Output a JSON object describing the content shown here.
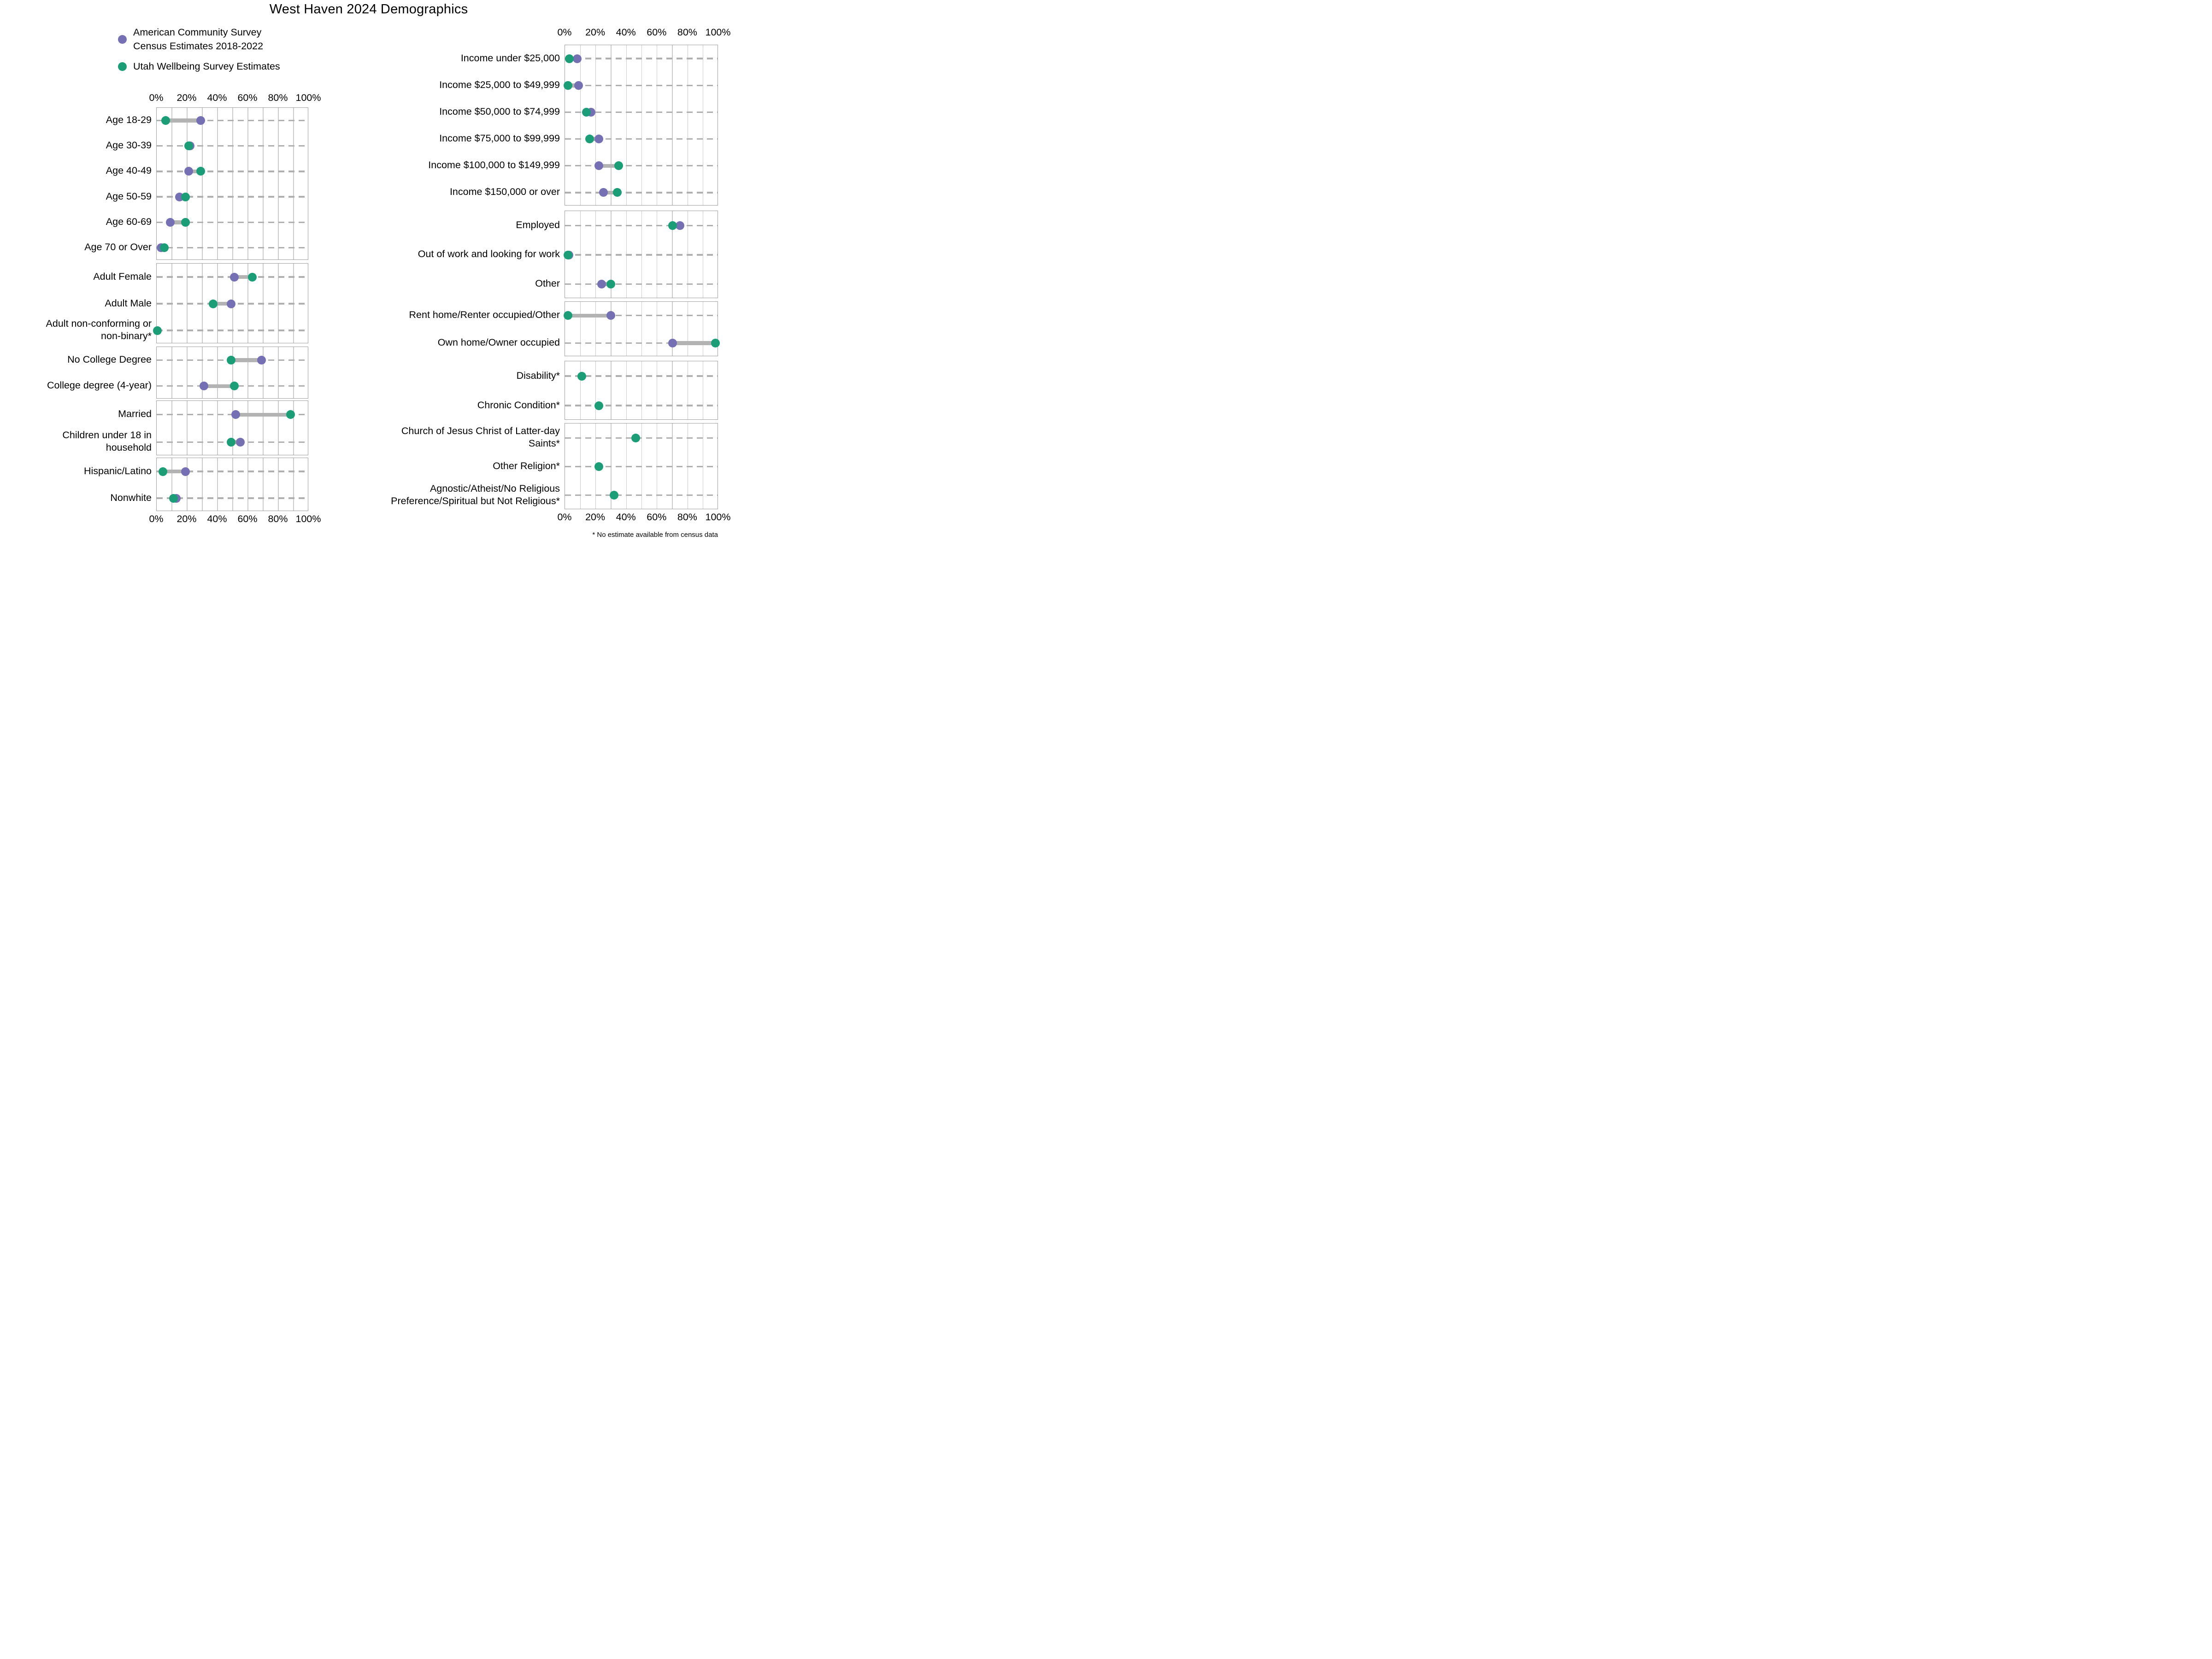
{
  "title": "West Haven 2024 Demographics",
  "footnote": "* No estimate available from census data",
  "legend": [
    {
      "series": "census",
      "label": "American Community Survey\nCensus Estimates 2018-2022"
    },
    {
      "series": "survey",
      "label": "Utah Wellbeing Survey Estimates"
    }
  ],
  "colors": {
    "census": "#7570b3",
    "survey": "#1b9e77",
    "connector": "#b3b3b3",
    "gridline": "#cbcbcb",
    "row_guide": "#b0b0b0",
    "panel_border": "#a0a0a0",
    "text": "#000000"
  },
  "axis": {
    "tick_labels": [
      "0%",
      "20%",
      "40%",
      "60%",
      "80%",
      "100%"
    ],
    "tick_values": [
      0,
      20,
      40,
      60,
      80,
      100
    ],
    "min": 0,
    "max": 100,
    "minor_gridline_step": 10
  },
  "chart_data": {
    "type": "dumbbell-dot-plot",
    "unit": "percent",
    "title": "West Haven 2024 Demographics",
    "series": [
      {
        "key": "census",
        "name": "American Community Survey Census Estimates 2018-2022",
        "color": "#7570b3"
      },
      {
        "key": "survey",
        "name": "Utah Wellbeing Survey Estimates",
        "color": "#1b9e77"
      }
    ],
    "columns": [
      {
        "panels": [
          {
            "rows": [
              {
                "label": "Age 18-29",
                "census": 29,
                "survey": 6
              },
              {
                "label": "Age 30-39",
                "census": 22,
                "survey": 21
              },
              {
                "label": "Age 40-49",
                "census": 21,
                "survey": 29
              },
              {
                "label": "Age 50-59",
                "census": 15,
                "survey": 19
              },
              {
                "label": "Age 60-69",
                "census": 9,
                "survey": 19
              },
              {
                "label": "Age 70 or Over",
                "census": 3,
                "survey": 5
              }
            ]
          },
          {
            "rows": [
              {
                "label": "Adult Female",
                "census": 51,
                "survey": 63
              },
              {
                "label": "Adult Male",
                "census": 49,
                "survey": 37
              },
              {
                "label": "Adult non-conforming or\nnon-binary*",
                "census": null,
                "survey": 0.4
              }
            ]
          },
          {
            "rows": [
              {
                "label": "No College Degree",
                "census": 69,
                "survey": 49
              },
              {
                "label": "College degree (4-year)",
                "census": 31,
                "survey": 51
              }
            ]
          },
          {
            "rows": [
              {
                "label": "Married",
                "census": 52,
                "survey": 88
              },
              {
                "label": "Children under 18 in\nhousehold",
                "census": 55,
                "survey": 49
              }
            ]
          },
          {
            "rows": [
              {
                "label": "Hispanic/Latino",
                "census": 19,
                "survey": 4
              },
              {
                "label": "Nonwhite",
                "census": 13,
                "survey": 11
              }
            ]
          }
        ]
      },
      {
        "panels": [
          {
            "rows": [
              {
                "label": "Income under $25,000",
                "census": 8,
                "survey": 3
              },
              {
                "label": "Income $25,000 to $49,999",
                "census": 9,
                "survey": 2
              },
              {
                "label": "Income $50,000 to $74,999",
                "census": 17,
                "survey": 14
              },
              {
                "label": "Income $75,000 to $99,999",
                "census": 22,
                "survey": 16
              },
              {
                "label": "Income $100,000 to $149,999",
                "census": 22,
                "survey": 35
              },
              {
                "label": "Income $150,000 or over",
                "census": 25,
                "survey": 34
              }
            ]
          },
          {
            "rows": [
              {
                "label": "Employed",
                "census": 75,
                "survey": 70
              },
              {
                "label": "Out of work and looking for work",
                "census": 2.5,
                "survey": 2
              },
              {
                "label": "Other",
                "census": 24,
                "survey": 30
              }
            ]
          },
          {
            "rows": [
              {
                "label": "Rent home/Renter occupied/Other",
                "census": 30,
                "survey": 2
              },
              {
                "label": "Own home/Owner occupied",
                "census": 70,
                "survey": 98
              }
            ]
          },
          {
            "rows": [
              {
                "label": "Disability*",
                "census": null,
                "survey": 11
              },
              {
                "label": "Chronic Condition*",
                "census": null,
                "survey": 22
              }
            ]
          },
          {
            "rows": [
              {
                "label": "Church of Jesus Christ of Latter-day\nSaints*",
                "census": null,
                "survey": 46
              },
              {
                "label": "Other Religion*",
                "census": null,
                "survey": 22
              },
              {
                "label": "Agnostic/Atheist/No Religious\nPreference/Spiritual but Not Religious*",
                "census": null,
                "survey": 32
              }
            ]
          }
        ]
      }
    ]
  }
}
